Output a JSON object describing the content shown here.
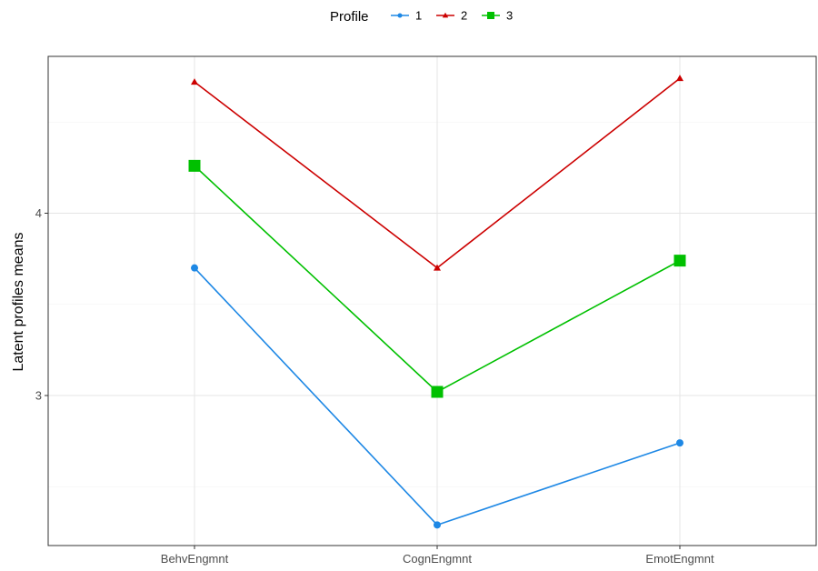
{
  "chart_data": {
    "type": "line",
    "xlabel": "",
    "ylabel": "Latent profiles means",
    "categories": [
      "BehvEngmnt",
      "CognEngmnt",
      "EmotEngmnt"
    ],
    "yticks": [
      3,
      4
    ],
    "ylim": [
      2.29,
      4.86
    ],
    "grid": true,
    "legend": {
      "title": "Profile",
      "position": "top"
    },
    "series": [
      {
        "name": "1",
        "values": [
          3.7,
          2.29,
          2.74
        ],
        "color": "#1E88E5",
        "marker": "circle"
      },
      {
        "name": "2",
        "values": [
          4.72,
          3.7,
          4.74
        ],
        "color": "#CC0000",
        "marker": "triangle"
      },
      {
        "name": "3",
        "values": [
          4.26,
          3.02,
          3.74
        ],
        "color": "#00C000",
        "marker": "square"
      }
    ]
  }
}
